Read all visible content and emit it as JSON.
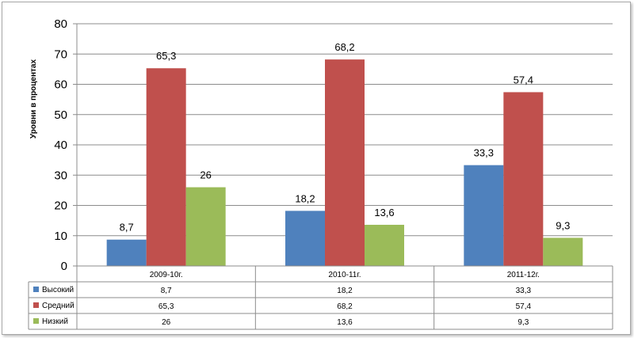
{
  "chart_data": {
    "type": "bar",
    "categories": [
      "2009-10г.",
      "2010-11г.",
      "2011-12г."
    ],
    "series": [
      {
        "name": "Высокий",
        "values": [
          8.7,
          18.2,
          33.3
        ],
        "labels": [
          "8,7",
          "18,2",
          "33,3"
        ],
        "color": "#4f81bd"
      },
      {
        "name": "Средний",
        "values": [
          65.3,
          68.2,
          57.4
        ],
        "labels": [
          "65,3",
          "68,2",
          "57,4"
        ],
        "color": "#c0504d"
      },
      {
        "name": "Низкий",
        "values": [
          26,
          13.6,
          9.3
        ],
        "labels": [
          "26",
          "13,6",
          "9,3"
        ],
        "color": "#9bbb59"
      }
    ],
    "ylabel": "Уровни в процентах",
    "ylim": [
      0,
      80
    ],
    "yticks": [
      0,
      10,
      20,
      30,
      40,
      50,
      60,
      70,
      80
    ],
    "grid": true,
    "legend": "data-table"
  }
}
